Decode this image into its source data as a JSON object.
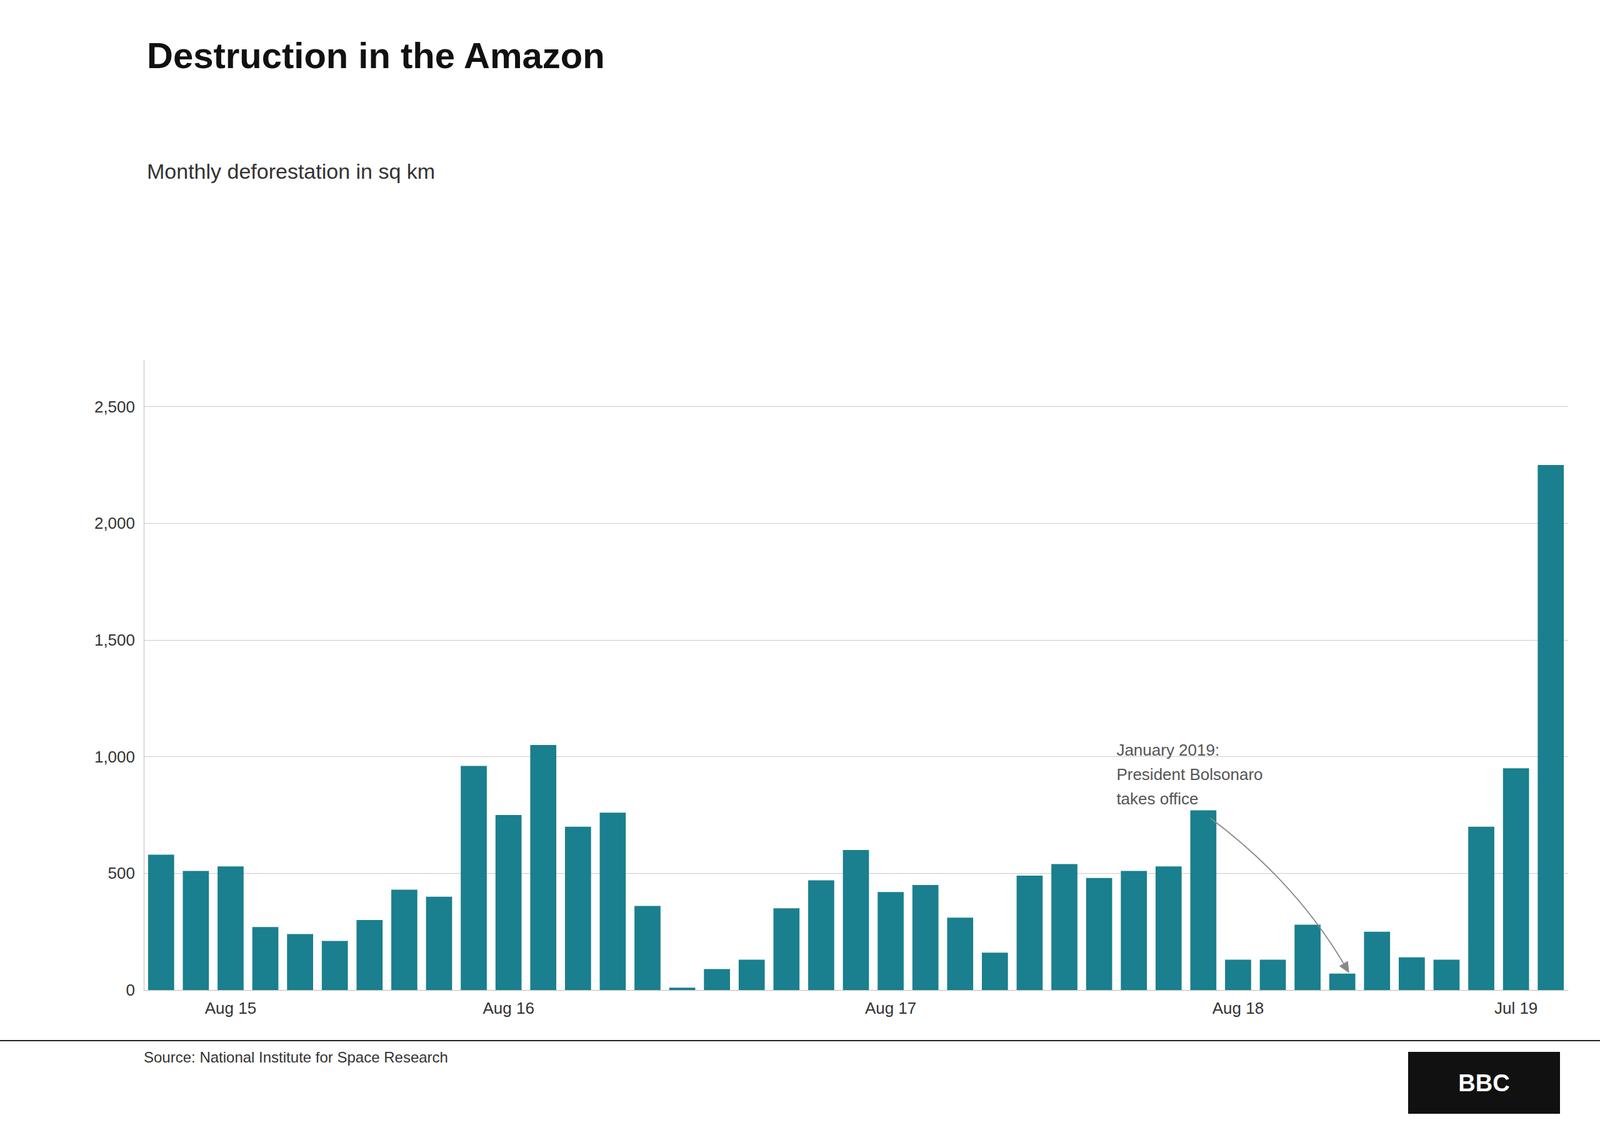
{
  "chart_data": {
    "type": "bar",
    "title": "Destruction in the Amazon",
    "subtitle": "Monthly deforestation in sq km",
    "annotation": "January 2019:\nPresident Bolsonaro\ntakes office",
    "source": "Source: National Institute for Space Research",
    "logo": "BBC",
    "categories": [
      null,
      null,
      "Aug 15",
      null,
      null,
      null,
      null,
      null,
      null,
      null,
      "Aug 16",
      null,
      null,
      null,
      null,
      null,
      null,
      null,
      null,
      null,
      null,
      "Aug 17",
      null,
      null,
      null,
      null,
      null,
      null,
      null,
      null,
      null,
      "Aug 18",
      null,
      null,
      null,
      null,
      null,
      null,
      null,
      "Jul 19",
      null
    ],
    "values": [
      580,
      510,
      530,
      270,
      240,
      210,
      300,
      430,
      400,
      960,
      750,
      1050,
      700,
      760,
      360,
      10,
      90,
      130,
      350,
      470,
      600,
      420,
      450,
      310,
      160,
      490,
      540,
      480,
      510,
      530,
      770,
      130,
      130,
      280,
      70,
      250,
      140,
      130,
      700,
      950,
      2250
    ],
    "color": "#1a7f8e",
    "ylim": [
      0,
      2700
    ],
    "yticks": [
      0,
      500,
      {
        "value": 1000,
        "label": "1,000"
      },
      {
        "value": 1500,
        "label": "1,500"
      },
      {
        "value": 2000,
        "label": "2,000"
      },
      {
        "value": 2500,
        "label": "2,500"
      }
    ],
    "grid": true
  }
}
